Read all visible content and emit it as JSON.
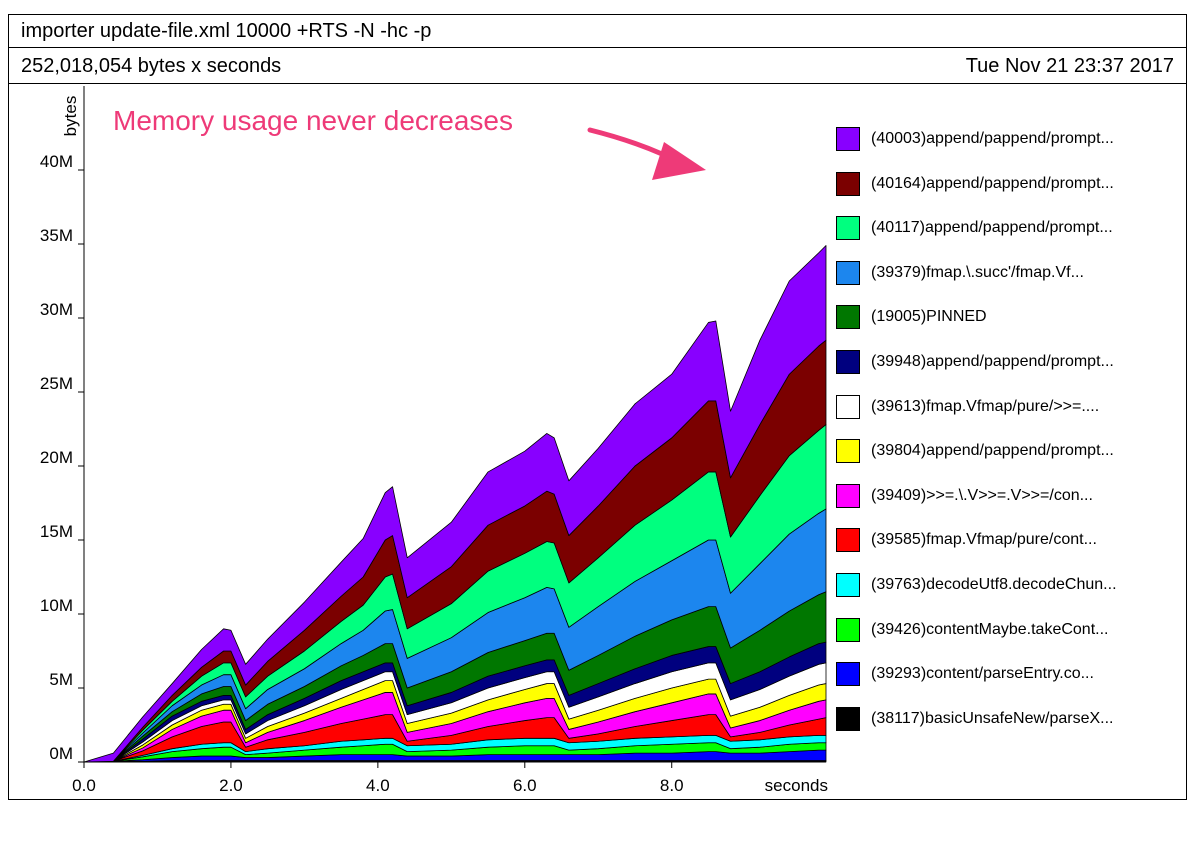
{
  "header": {
    "command": "importer update-file.xml 10000 +RTS -N -hc -p",
    "total": "252,018,054 bytes x seconds",
    "date": "Tue Nov 21 23:37 2017"
  },
  "annotation": {
    "text": "Memory usage never decreases",
    "color": "#ee3a78"
  },
  "chart_data": {
    "type": "area",
    "stacked": true,
    "title": "importer update-file.xml 10000 +RTS -N -hc -p",
    "xlabel": "seconds",
    "ylabel": "bytes",
    "xlim": [
      0,
      10.1
    ],
    "ylim": [
      0,
      45
    ],
    "y_unit": "M bytes",
    "x_ticks": [
      "0.0",
      "2.0",
      "4.0",
      "6.0",
      "8.0"
    ],
    "x_tick_values": [
      0,
      2,
      4,
      6,
      8
    ],
    "y_ticks": [
      "0M",
      "5M",
      "10M",
      "15M",
      "20M",
      "25M",
      "30M",
      "35M",
      "40M"
    ],
    "y_tick_values": [
      0,
      5,
      10,
      15,
      20,
      25,
      30,
      35,
      40
    ],
    "grid": false,
    "legend_position": "right",
    "x": [
      0,
      0.4,
      0.8,
      1.2,
      1.6,
      1.9,
      2.0,
      2.2,
      2.5,
      3.0,
      3.5,
      3.8,
      4.1,
      4.2,
      4.4,
      5.0,
      5.5,
      6.0,
      6.3,
      6.4,
      6.6,
      7.0,
      7.5,
      8.0,
      8.5,
      8.6,
      8.8,
      9.2,
      9.6,
      10.0,
      10.1
    ],
    "series": [
      {
        "name": "(40003)append/pappend/prompt...",
        "color": "#8800ff",
        "values": [
          0,
          0.55,
          0.7,
          0.8,
          1.2,
          1.5,
          1.4,
          1.4,
          1.5,
          1.9,
          2.3,
          2.6,
          3.2,
          3.3,
          2.7,
          3.0,
          3.6,
          3.7,
          3.9,
          3.8,
          3.7,
          3.9,
          4.2,
          4.3,
          5.3,
          5.4,
          4.5,
          5.7,
          6.3,
          6.3,
          6.4
        ]
      },
      {
        "name": "(40164)append/pappend/prompt...",
        "color": "#7b0000",
        "values": [
          0,
          0,
          0.2,
          0.4,
          0.6,
          0.8,
          0.8,
          0.8,
          1.0,
          1.4,
          1.7,
          1.9,
          2.5,
          2.6,
          2.1,
          2.5,
          3.1,
          3.2,
          3.4,
          3.3,
          3.2,
          3.5,
          4.0,
          4.2,
          4.8,
          4.8,
          4.0,
          4.8,
          5.5,
          5.7,
          5.7
        ]
      },
      {
        "name": "(40117)append/pappend/prompt...",
        "color": "#00ff7f",
        "values": [
          0,
          0,
          0.2,
          0.3,
          0.6,
          0.8,
          0.8,
          0.8,
          0.9,
          1.2,
          1.5,
          1.7,
          2.3,
          2.4,
          2.0,
          2.3,
          2.8,
          3.0,
          3.1,
          3.1,
          3.0,
          3.3,
          3.8,
          4.1,
          4.6,
          4.6,
          3.8,
          4.6,
          5.3,
          5.6,
          5.7
        ]
      },
      {
        "name": "(39379)fmap.\\.succ'/fmap.Vf...",
        "color": "#1c86ee",
        "values": [
          0,
          0,
          0.2,
          0.4,
          0.6,
          0.8,
          0.8,
          0.8,
          1.0,
          1.2,
          1.5,
          1.7,
          2.2,
          2.3,
          2.0,
          2.3,
          2.7,
          2.9,
          3.1,
          3.0,
          2.9,
          3.3,
          3.7,
          4.0,
          4.5,
          4.5,
          3.7,
          4.5,
          5.2,
          5.5,
          5.6
        ]
      },
      {
        "name": "(19005)PINNED",
        "color": "#007700",
        "values": [
          0,
          0,
          0.2,
          0.3,
          0.5,
          0.6,
          0.6,
          0.6,
          0.7,
          0.8,
          1.0,
          1.1,
          1.3,
          1.3,
          1.2,
          1.4,
          1.6,
          1.7,
          1.8,
          1.8,
          1.7,
          1.9,
          2.2,
          2.4,
          2.7,
          2.7,
          2.4,
          2.8,
          3.1,
          3.3,
          3.4
        ]
      },
      {
        "name": "(39948)append/pappend/prompt...",
        "color": "#00007f",
        "values": [
          0,
          0,
          0.2,
          0.3,
          0.3,
          0.3,
          0.3,
          0.3,
          0.4,
          0.5,
          0.6,
          0.6,
          0.6,
          0.6,
          0.6,
          0.7,
          0.8,
          0.8,
          0.8,
          0.8,
          0.8,
          0.9,
          1.0,
          1.1,
          1.1,
          1.1,
          1.1,
          1.2,
          1.3,
          1.4,
          1.4
        ]
      },
      {
        "name": "(39613)fmap.Vfmap/pure/>>=....",
        "color": "#ffffff",
        "values": [
          0,
          0,
          0.2,
          0.3,
          0.3,
          0.3,
          0.3,
          0.3,
          0.4,
          0.5,
          0.6,
          0.6,
          0.6,
          0.6,
          0.6,
          0.7,
          0.8,
          0.8,
          0.8,
          0.8,
          0.8,
          0.9,
          1.0,
          1.1,
          1.1,
          1.1,
          1.1,
          1.2,
          1.3,
          1.4,
          1.4
        ]
      },
      {
        "name": "(39804)append/pappend/prompt...",
        "color": "#ffff00",
        "values": [
          0,
          0,
          0.2,
          0.3,
          0.4,
          0.4,
          0.4,
          0.3,
          0.4,
          0.5,
          0.6,
          0.7,
          0.8,
          0.8,
          0.6,
          0.7,
          0.8,
          0.9,
          1.0,
          1.0,
          0.7,
          0.8,
          0.9,
          1.0,
          1.0,
          1.0,
          0.8,
          0.9,
          1.0,
          1.1,
          1.1
        ]
      },
      {
        "name": "(39409)>>=.\\.V>>=.V>>=/con...",
        "color": "#ff00ff",
        "values": [
          0,
          0,
          0.2,
          0.5,
          0.7,
          0.8,
          0.8,
          0.3,
          0.5,
          0.8,
          1.1,
          1.3,
          1.5,
          1.5,
          0.6,
          0.8,
          1.0,
          1.2,
          1.3,
          1.3,
          0.6,
          0.8,
          1.0,
          1.2,
          1.4,
          1.4,
          0.6,
          0.8,
          1.0,
          1.2,
          1.2
        ]
      },
      {
        "name": "(39585)fmap.Vfmap/pure/cont...",
        "color": "#ff0000",
        "values": [
          0,
          0,
          0.3,
          0.8,
          1.2,
          1.4,
          1.4,
          0.3,
          0.6,
          0.9,
          1.2,
          1.4,
          1.6,
          1.6,
          0.3,
          0.6,
          0.9,
          1.2,
          1.4,
          1.4,
          0.3,
          0.5,
          0.8,
          1.1,
          1.4,
          1.4,
          0.3,
          0.5,
          0.8,
          1.1,
          1.2
        ]
      },
      {
        "name": "(39763)decodeUtf8.decodeChun...",
        "color": "#00ffff",
        "values": [
          0,
          0,
          0.1,
          0.2,
          0.3,
          0.3,
          0.3,
          0.2,
          0.3,
          0.3,
          0.4,
          0.4,
          0.4,
          0.4,
          0.4,
          0.4,
          0.5,
          0.5,
          0.5,
          0.5,
          0.5,
          0.5,
          0.5,
          0.5,
          0.5,
          0.5,
          0.5,
          0.5,
          0.5,
          0.5,
          0.5
        ]
      },
      {
        "name": "(39426)contentMaybe.takeCont...",
        "color": "#00ff00",
        "values": [
          0,
          0,
          0.2,
          0.4,
          0.5,
          0.6,
          0.6,
          0.2,
          0.3,
          0.4,
          0.5,
          0.6,
          0.7,
          0.7,
          0.3,
          0.4,
          0.5,
          0.6,
          0.6,
          0.6,
          0.3,
          0.4,
          0.5,
          0.6,
          0.6,
          0.6,
          0.3,
          0.4,
          0.5,
          0.5,
          0.5
        ]
      },
      {
        "name": "(39293)content/parseEntry.co...",
        "color": "#0000ff",
        "values": [
          0,
          0,
          0.1,
          0.2,
          0.3,
          0.3,
          0.3,
          0.2,
          0.2,
          0.3,
          0.4,
          0.4,
          0.4,
          0.4,
          0.3,
          0.3,
          0.4,
          0.4,
          0.4,
          0.4,
          0.4,
          0.4,
          0.5,
          0.5,
          0.6,
          0.6,
          0.5,
          0.5,
          0.6,
          0.7,
          0.7
        ]
      },
      {
        "name": "(38117)basicUnsafeNew/parseX...",
        "color": "#000000",
        "values": [
          0,
          0.05,
          0.05,
          0.1,
          0.1,
          0.1,
          0.1,
          0.1,
          0.1,
          0.1,
          0.1,
          0.1,
          0.1,
          0.1,
          0.1,
          0.1,
          0.1,
          0.1,
          0.1,
          0.1,
          0.1,
          0.1,
          0.1,
          0.1,
          0.1,
          0.1,
          0.1,
          0.1,
          0.1,
          0.1,
          0.1
        ]
      }
    ]
  }
}
